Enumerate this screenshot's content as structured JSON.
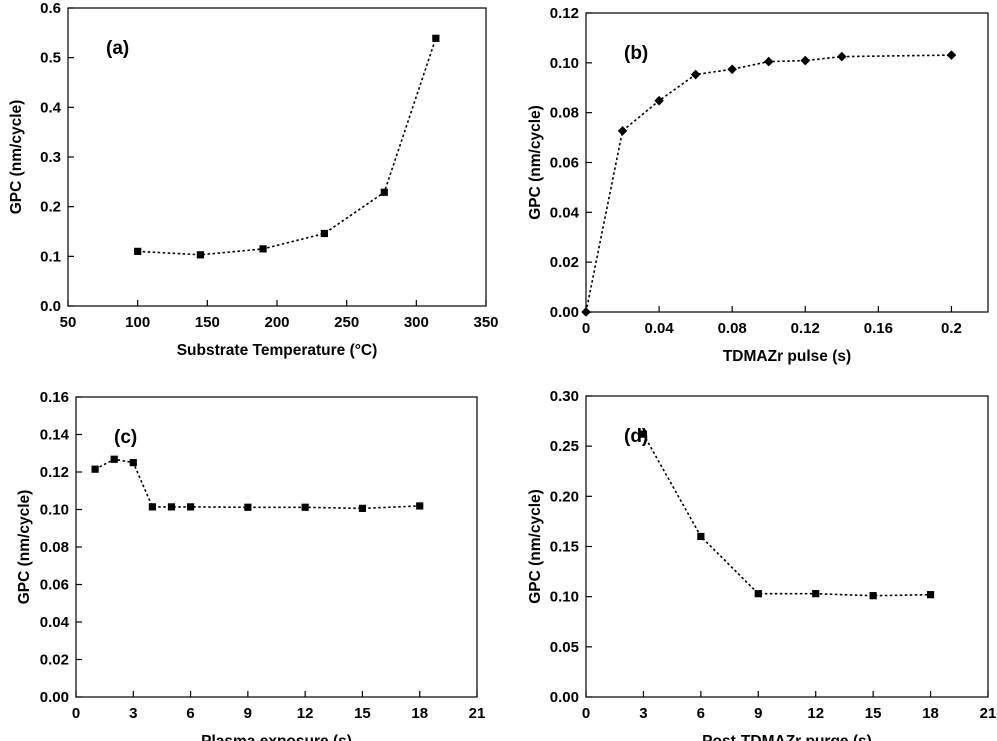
{
  "chart_data": [
    {
      "type": "scatter",
      "panel_label": "(a)",
      "xlabel": "Substrate Temperature (°C)",
      "ylabel": "GPC (nm/cycle)",
      "xlim": [
        50,
        350
      ],
      "ylim": [
        0,
        0.6
      ],
      "xticks": [
        50,
        100,
        150,
        200,
        250,
        300,
        350
      ],
      "xtick_labels": [
        "50",
        "100",
        "150",
        "200",
        "250",
        "300",
        "350"
      ],
      "yticks": [
        0,
        0.1,
        0.2,
        0.3,
        0.4,
        0.5,
        0.6
      ],
      "ytick_labels": [
        "0.0",
        "0.1",
        "0.2",
        "0.3",
        "0.4",
        "0.5",
        "0.6"
      ],
      "marker": "square",
      "line": "dotted",
      "grid": false,
      "x": [
        100,
        145,
        190,
        234,
        277,
        314
      ],
      "y": [
        0.11,
        0.103,
        0.115,
        0.146,
        0.229,
        0.539
      ]
    },
    {
      "type": "scatter",
      "panel_label": "(b)",
      "xlabel": "TDMAZr pulse (s)",
      "ylabel": "GPC (nm/cycle)",
      "xlim": [
        0,
        0.22
      ],
      "ylim": [
        0,
        0.12
      ],
      "xticks": [
        0,
        0.04,
        0.08,
        0.12,
        0.16,
        0.2
      ],
      "xtick_labels": [
        "0",
        "0.04",
        "0.08",
        "0.12",
        "0.16",
        "0.2"
      ],
      "yticks": [
        0,
        0.02,
        0.04,
        0.06,
        0.08,
        0.1,
        0.12
      ],
      "ytick_labels": [
        "0.00",
        "0.02",
        "0.04",
        "0.06",
        "0.08",
        "0.10",
        "0.12"
      ],
      "marker": "diamond",
      "line": "dotted",
      "grid": false,
      "x": [
        0,
        0.02,
        0.04,
        0.06,
        0.08,
        0.1,
        0.12,
        0.14,
        0.2
      ],
      "y": [
        0,
        0.0727,
        0.0848,
        0.0953,
        0.0974,
        0.1005,
        0.1009,
        0.1025,
        0.1031
      ]
    },
    {
      "type": "scatter",
      "panel_label": "(c)",
      "xlabel": "Plasma exposure (s)",
      "ylabel": "GPC (nm/cycle)",
      "xlim": [
        0,
        21
      ],
      "ylim": [
        0,
        0.16
      ],
      "xticks": [
        0,
        3,
        6,
        9,
        12,
        15,
        18,
        21
      ],
      "xtick_labels": [
        "0",
        "3",
        "6",
        "9",
        "12",
        "15",
        "18",
        "21"
      ],
      "yticks": [
        0,
        0.02,
        0.04,
        0.06,
        0.08,
        0.1,
        0.12,
        0.14,
        0.16
      ],
      "ytick_labels": [
        "0.00",
        "0.02",
        "0.04",
        "0.06",
        "0.08",
        "0.10",
        "0.12",
        "0.14",
        "0.16"
      ],
      "marker": "square",
      "line": "dotted",
      "grid": false,
      "x": [
        1,
        2,
        3,
        4,
        5,
        6,
        9,
        12,
        15,
        18
      ],
      "y": [
        0.1215,
        0.1268,
        0.125,
        0.1014,
        0.1014,
        0.1014,
        0.1012,
        0.1012,
        0.1006,
        0.1019
      ]
    },
    {
      "type": "scatter",
      "panel_label": "(d)",
      "xlabel": "Post-TDMAZr purge (s)",
      "ylabel": "GPC (nm/cycle)",
      "xlim": [
        0,
        21
      ],
      "ylim": [
        0,
        0.3
      ],
      "xticks": [
        0,
        3,
        6,
        9,
        12,
        15,
        18,
        21
      ],
      "xtick_labels": [
        "0",
        "3",
        "6",
        "9",
        "12",
        "15",
        "18",
        "21"
      ],
      "yticks": [
        0,
        0.05,
        0.1,
        0.15,
        0.2,
        0.25,
        0.3
      ],
      "ytick_labels": [
        "0.00",
        "0.05",
        "0.10",
        "0.15",
        "0.20",
        "0.25",
        "0.30"
      ],
      "marker": "square",
      "line": "dotted",
      "grid": false,
      "x": [
        3,
        6,
        9,
        12,
        15,
        18
      ],
      "y": [
        0.262,
        0.16,
        0.103,
        0.103,
        0.101,
        0.102
      ]
    }
  ]
}
